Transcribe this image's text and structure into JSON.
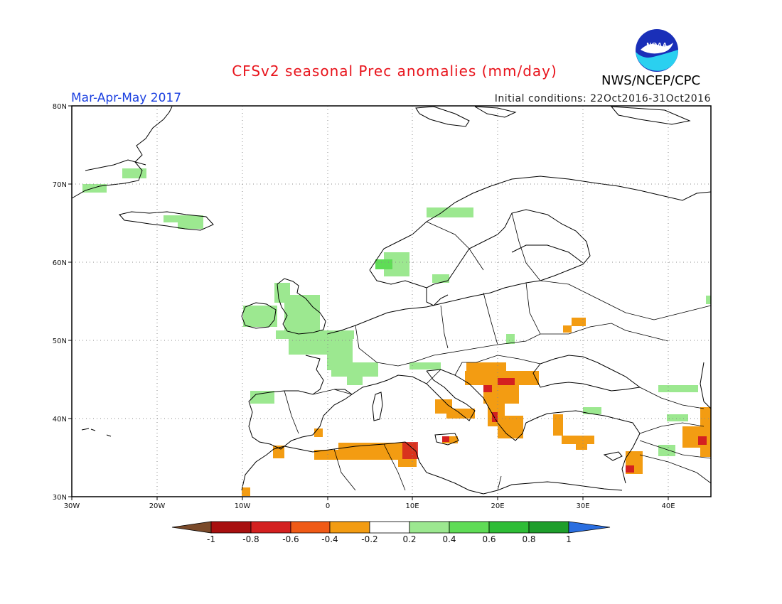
{
  "header": {
    "title": "CFSv2 seasonal Prec anomalies (mm/day)",
    "period": "Mar-Apr-May 2017",
    "initial_conditions": "Initial conditions: 22Oct2016-31Oct2016",
    "agency": "NWS/NCEP/CPC",
    "logo_text": "NOAA"
  },
  "map": {
    "projection": "lat-lon",
    "lon_range": [
      -30,
      45
    ],
    "lat_range": [
      30,
      80
    ],
    "lon_tick_labels": [
      "30W",
      "20W",
      "10W",
      "0",
      "10E",
      "20E",
      "30E",
      "40E"
    ],
    "lat_tick_labels": [
      "30N",
      "40N",
      "50N",
      "60N",
      "70N",
      "80N"
    ],
    "gridlines": true
  },
  "colorbar": {
    "labels": [
      "-1",
      "-0.8",
      "-0.6",
      "-0.4",
      "-0.2",
      "0.2",
      "0.4",
      "0.6",
      "0.8",
      "1"
    ],
    "colors": [
      "#7a4a2a",
      "#a80f0f",
      "#d42020",
      "#f05a16",
      "#f39c12",
      "#ffffff",
      "#9ce890",
      "#5fdc56",
      "#2ebd36",
      "#1e9e2b",
      "#2a6ee0"
    ]
  },
  "anomaly_regions": [
    {
      "name": "Greenland east coast",
      "sign": "positive",
      "level": "0.2-0.4"
    },
    {
      "name": "Iceland",
      "sign": "positive",
      "level": "0.2-0.4"
    },
    {
      "name": "Ireland and UK",
      "sign": "positive",
      "level": "0.2-0.4"
    },
    {
      "name": "Northern France / Benelux",
      "sign": "positive",
      "level": "0.2-0.4"
    },
    {
      "name": "Southern Norway",
      "sign": "positive",
      "level": "0.2-0.4"
    },
    {
      "name": "Northern Norway coast",
      "sign": "positive",
      "level": "0.2-0.4"
    },
    {
      "name": "Northwest Iberia",
      "sign": "positive",
      "level": "0.2-0.4"
    },
    {
      "name": "Balkans",
      "sign": "negative",
      "level": "-0.4 to -0.6"
    },
    {
      "name": "Greece",
      "sign": "negative",
      "level": "-0.2 to -0.4"
    },
    {
      "name": "Northern Algeria / Tunisia",
      "sign": "negative",
      "level": "-0.2 to -0.6"
    },
    {
      "name": "Southern Italy / Sicily",
      "sign": "negative",
      "level": "-0.2 to -0.4"
    },
    {
      "name": "Turkey coast",
      "sign": "negative",
      "level": "-0.2 to -0.4"
    },
    {
      "name": "Middle East (east edge)",
      "sign": "negative",
      "level": "-0.2 to -0.4"
    },
    {
      "name": "Ukraine",
      "sign": "negative",
      "level": "-0.2 to -0.4"
    }
  ]
}
